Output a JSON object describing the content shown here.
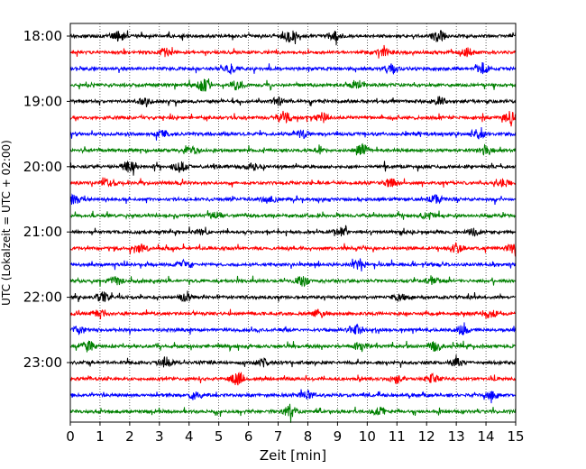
{
  "chart_data": {
    "type": "line",
    "subtype": "helicorder",
    "title": "",
    "xlabel": "Zeit  [min]",
    "ylabel": "UTC (Lokalzeit = UTC + 02:00)",
    "xlim": [
      0,
      15
    ],
    "x_ticks": [
      0,
      1,
      2,
      3,
      4,
      5,
      6,
      7,
      8,
      9,
      10,
      11,
      12,
      13,
      14,
      15
    ],
    "x_tick_labels": [
      "0",
      "1",
      "2",
      "3",
      "4",
      "5",
      "6",
      "7",
      "8",
      "9",
      "10",
      "11",
      "12",
      "13",
      "14",
      "15"
    ],
    "y_tick_labels": [
      "18:00",
      "19:00",
      "20:00",
      "21:00",
      "22:00",
      "23:00"
    ],
    "minutes_per_line": 15,
    "vertical_grid": true,
    "grid_style": "dotted",
    "trace_colors": [
      "#000000",
      "#ff0000",
      "#0000ff",
      "#008000"
    ],
    "series": [
      {
        "start": "18:00",
        "color": "#000000",
        "bursts": [
          [
            1.6,
            0.9
          ],
          [
            7.4,
            1.0
          ],
          [
            8.9,
            0.7
          ],
          [
            12.4,
            0.9
          ]
        ]
      },
      {
        "start": "18:15",
        "color": "#ff0000",
        "bursts": [
          [
            3.2,
            0.6
          ],
          [
            10.6,
            0.8
          ],
          [
            13.4,
            0.6
          ]
        ]
      },
      {
        "start": "18:30",
        "color": "#0000ff",
        "bursts": [
          [
            5.4,
            0.6
          ],
          [
            10.8,
            0.7
          ],
          [
            13.9,
            0.8
          ]
        ]
      },
      {
        "start": "18:45",
        "color": "#008000",
        "bursts": [
          [
            4.5,
            1.0
          ],
          [
            5.6,
            0.8
          ],
          [
            9.6,
            0.6
          ]
        ]
      },
      {
        "start": "19:00",
        "color": "#000000",
        "bursts": [
          [
            2.5,
            0.5
          ],
          [
            7.0,
            0.6
          ],
          [
            12.4,
            0.6
          ]
        ]
      },
      {
        "start": "19:15",
        "color": "#ff0000",
        "bursts": [
          [
            7.2,
            1.0
          ],
          [
            8.5,
            0.7
          ],
          [
            14.8,
            0.9
          ]
        ]
      },
      {
        "start": "19:30",
        "color": "#0000ff",
        "bursts": [
          [
            3.1,
            0.5
          ],
          [
            7.8,
            0.6
          ],
          [
            13.7,
            0.8
          ]
        ]
      },
      {
        "start": "19:45",
        "color": "#008000",
        "bursts": [
          [
            4.1,
            0.6
          ],
          [
            9.8,
            1.0
          ],
          [
            14.0,
            0.8
          ]
        ]
      },
      {
        "start": "20:00",
        "color": "#000000",
        "bursts": [
          [
            2.0,
            1.0
          ],
          [
            3.7,
            0.8
          ],
          [
            6.2,
            0.5
          ]
        ]
      },
      {
        "start": "20:15",
        "color": "#ff0000",
        "bursts": [
          [
            1.3,
            0.5
          ],
          [
            10.8,
            0.7
          ],
          [
            14.6,
            0.6
          ]
        ]
      },
      {
        "start": "20:30",
        "color": "#0000ff",
        "bursts": [
          [
            0.1,
            0.9
          ],
          [
            6.7,
            0.6
          ],
          [
            12.3,
            0.6
          ]
        ]
      },
      {
        "start": "20:45",
        "color": "#008000",
        "bursts": [
          [
            4.9,
            0.6
          ],
          [
            12.0,
            0.6
          ]
        ]
      },
      {
        "start": "21:00",
        "color": "#000000",
        "bursts": [
          [
            4.4,
            0.5
          ],
          [
            9.1,
            0.6
          ],
          [
            13.6,
            0.5
          ]
        ]
      },
      {
        "start": "21:15",
        "color": "#ff0000",
        "bursts": [
          [
            2.4,
            0.6
          ],
          [
            13.0,
            0.7
          ],
          [
            14.9,
            0.6
          ]
        ]
      },
      {
        "start": "21:30",
        "color": "#0000ff",
        "bursts": [
          [
            3.8,
            0.6
          ],
          [
            9.7,
            0.6
          ]
        ]
      },
      {
        "start": "21:45",
        "color": "#008000",
        "bursts": [
          [
            1.5,
            0.7
          ],
          [
            7.8,
            0.8
          ],
          [
            12.2,
            0.5
          ]
        ]
      },
      {
        "start": "22:00",
        "color": "#000000",
        "bursts": [
          [
            1.1,
            0.7
          ],
          [
            3.9,
            0.6
          ],
          [
            11.1,
            0.5
          ]
        ]
      },
      {
        "start": "22:15",
        "color": "#ff0000",
        "bursts": [
          [
            1.0,
            0.7
          ],
          [
            8.4,
            0.6
          ],
          [
            14.1,
            0.7
          ]
        ]
      },
      {
        "start": "22:30",
        "color": "#0000ff",
        "bursts": [
          [
            0.3,
            0.6
          ],
          [
            9.6,
            0.9
          ],
          [
            13.2,
            0.6
          ]
        ]
      },
      {
        "start": "22:45",
        "color": "#008000",
        "bursts": [
          [
            0.6,
            0.8
          ],
          [
            9.8,
            0.7
          ],
          [
            12.3,
            0.8
          ]
        ]
      },
      {
        "start": "23:00",
        "color": "#000000",
        "bursts": [
          [
            3.2,
            0.8
          ],
          [
            6.5,
            0.6
          ],
          [
            13.0,
            0.6
          ]
        ]
      },
      {
        "start": "23:15",
        "color": "#ff0000",
        "bursts": [
          [
            5.6,
            0.9
          ],
          [
            11.0,
            0.6
          ],
          [
            12.2,
            0.6
          ]
        ]
      },
      {
        "start": "23:30",
        "color": "#0000ff",
        "bursts": [
          [
            4.2,
            0.5
          ],
          [
            8.0,
            0.6
          ],
          [
            14.2,
            0.5
          ]
        ]
      },
      {
        "start": "23:45",
        "color": "#008000",
        "bursts": [
          [
            7.4,
            1.0
          ],
          [
            10.4,
            0.6
          ]
        ]
      }
    ]
  }
}
